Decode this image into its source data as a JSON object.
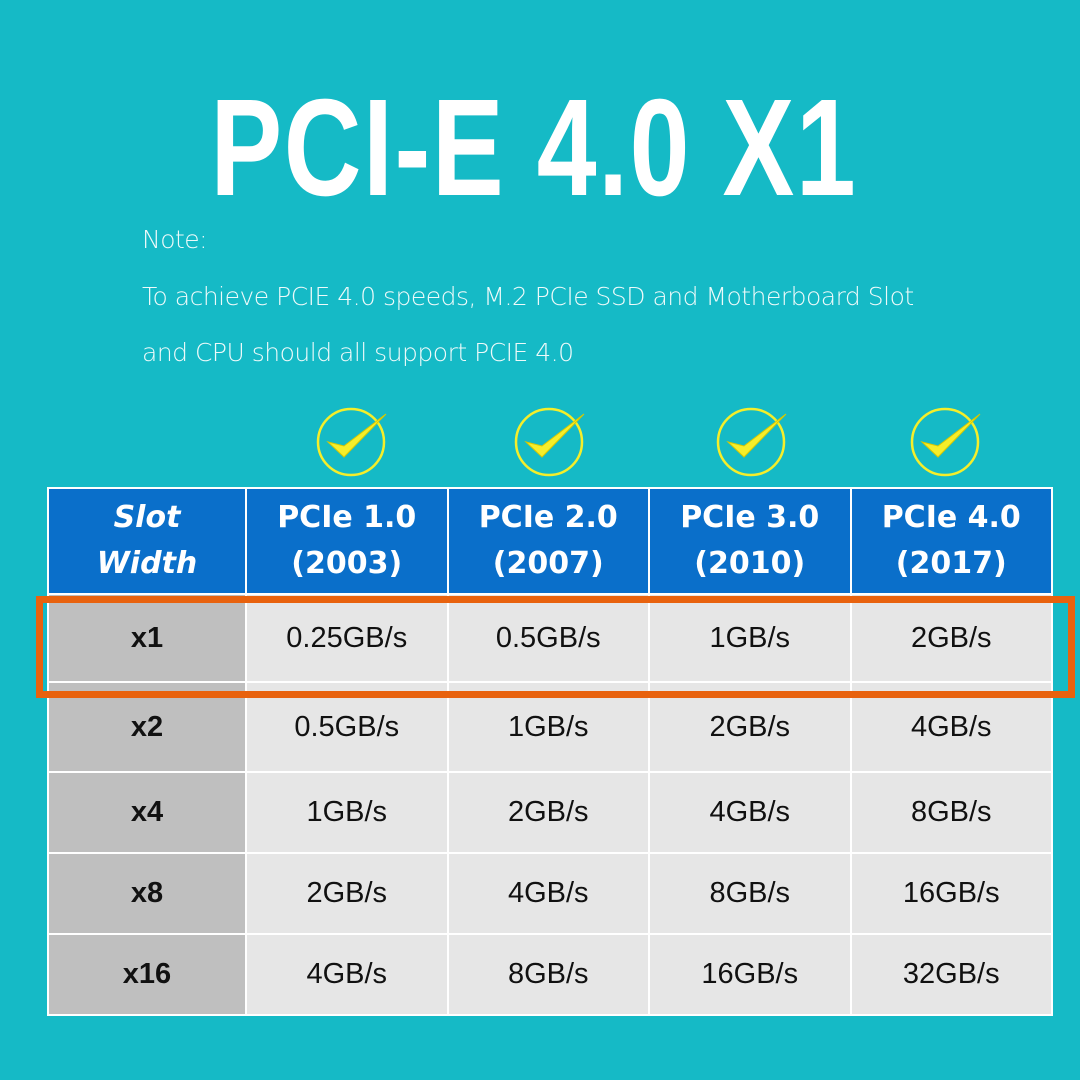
{
  "title": "PCI-E 4.0 X1",
  "note": {
    "label": "Note:",
    "line1": "To achieve PCIE 4.0 speeds, M.2 PCIe SSD and Motherboard Slot",
    "line2": "and CPU should all support PCIE 4.0"
  },
  "colors": {
    "background": "#15bac6",
    "header": "#0a6fca",
    "highlight": "#e8620e",
    "check": "#f5ee2a"
  },
  "table": {
    "header": {
      "slot_line1": "Slot",
      "slot_line2": "Width",
      "cols": [
        {
          "name": "PCIe 1.0",
          "year": "(2003)"
        },
        {
          "name": "PCIe 2.0",
          "year": "(2007)"
        },
        {
          "name": "PCIe 3.0",
          "year": "(2010)"
        },
        {
          "name": "PCIe 4.0",
          "year": "(2017)"
        }
      ]
    },
    "rows": [
      {
        "slot": "x1",
        "values": [
          "0.25GB/s",
          "0.5GB/s",
          "1GB/s",
          "2GB/s"
        ]
      },
      {
        "slot": "x2",
        "values": [
          "0.5GB/s",
          "1GB/s",
          "2GB/s",
          "4GB/s"
        ]
      },
      {
        "slot": "x4",
        "values": [
          "1GB/s",
          "2GB/s",
          "4GB/s",
          "8GB/s"
        ]
      },
      {
        "slot": "x8",
        "values": [
          "2GB/s",
          "4GB/s",
          "8GB/s",
          "16GB/s"
        ]
      },
      {
        "slot": "x16",
        "values": [
          "4GB/s",
          "8GB/s",
          "16GB/s",
          "32GB/s"
        ]
      }
    ],
    "highlighted_row": "x1"
  }
}
